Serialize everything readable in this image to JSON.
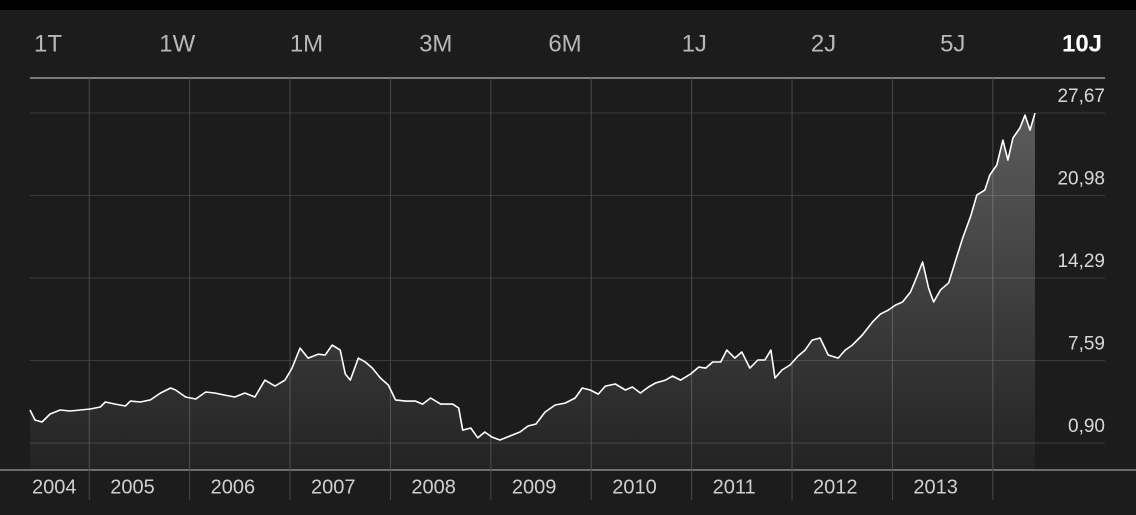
{
  "range_tabs": [
    "1T",
    "1W",
    "1M",
    "3M",
    "6M",
    "1J",
    "2J",
    "5J",
    "10J"
  ],
  "selected_tab": 8,
  "chart_data": {
    "type": "area",
    "x": [
      2004.41,
      2004.46,
      2004.53,
      2004.61,
      2004.71,
      2004.81,
      2004.91,
      2005.01,
      2005.11,
      2005.16,
      2005.26,
      2005.36,
      2005.41,
      2005.51,
      2005.61,
      2005.71,
      2005.81,
      2005.86,
      2005.96,
      2006.06,
      2006.16,
      2006.25,
      2006.35,
      2006.45,
      2006.55,
      2006.65,
      2006.75,
      2006.85,
      2006.95,
      2007.02,
      2007.1,
      2007.18,
      2007.28,
      2007.35,
      2007.42,
      2007.5,
      2007.55,
      2007.6,
      2007.68,
      2007.75,
      2007.82,
      2007.9,
      2007.98,
      2008.05,
      2008.15,
      2008.25,
      2008.32,
      2008.4,
      2008.5,
      2008.62,
      2008.68,
      2008.72,
      2008.8,
      2008.87,
      2008.94,
      2009.01,
      2009.09,
      2009.19,
      2009.29,
      2009.37,
      2009.45,
      2009.54,
      2009.64,
      2009.74,
      2009.84,
      2009.91,
      2009.99,
      2010.07,
      2010.14,
      2010.24,
      2010.34,
      2010.41,
      2010.49,
      2010.57,
      2010.64,
      2010.74,
      2010.81,
      2010.89,
      2010.99,
      2011.07,
      2011.14,
      2011.21,
      2011.29,
      2011.35,
      2011.43,
      2011.5,
      2011.58,
      2011.66,
      2011.73,
      2011.79,
      2011.83,
      2011.9,
      2011.98,
      2012.06,
      2012.13,
      2012.2,
      2012.28,
      2012.36,
      2012.46,
      2012.53,
      2012.6,
      2012.7,
      2012.8,
      2012.88,
      2012.96,
      2013.03,
      2013.1,
      2013.18,
      2013.23,
      2013.3,
      2013.36,
      2013.41,
      2013.48,
      2013.56,
      2013.63,
      2013.7,
      2013.78,
      2013.84,
      2013.92,
      2013.97,
      2014.04,
      2014.1,
      2014.15,
      2014.2,
      2014.27,
      2014.32,
      2014.37,
      2014.42
    ],
    "values": [
      3.58,
      2.77,
      2.6,
      3.25,
      3.58,
      3.5,
      3.58,
      3.66,
      3.82,
      4.23,
      4.06,
      3.9,
      4.3,
      4.23,
      4.4,
      4.96,
      5.36,
      5.2,
      4.63,
      4.47,
      5.04,
      4.96,
      4.79,
      4.63,
      4.96,
      4.63,
      6.0,
      5.52,
      6.0,
      6.98,
      8.6,
      7.79,
      8.1,
      8.04,
      8.84,
      8.44,
      6.5,
      6.0,
      7.79,
      7.47,
      6.98,
      6.17,
      5.6,
      4.4,
      4.3,
      4.3,
      4.06,
      4.55,
      4.06,
      4.06,
      3.74,
      1.95,
      2.12,
      1.31,
      1.79,
      1.39,
      1.14,
      1.47,
      1.79,
      2.28,
      2.44,
      3.41,
      3.98,
      4.14,
      4.55,
      5.36,
      5.2,
      4.87,
      5.52,
      5.69,
      5.2,
      5.44,
      4.96,
      5.44,
      5.77,
      6.0,
      6.33,
      6.0,
      6.5,
      7.06,
      6.98,
      7.47,
      7.47,
      8.44,
      7.79,
      8.28,
      6.98,
      7.63,
      7.63,
      8.44,
      6.17,
      6.82,
      7.23,
      7.96,
      8.44,
      9.25,
      9.42,
      8.04,
      7.79,
      8.44,
      8.84,
      9.66,
      10.71,
      11.36,
      11.69,
      12.09,
      12.34,
      13.15,
      14.12,
      15.58,
      13.47,
      12.34,
      13.33,
      13.9,
      15.74,
      17.53,
      19.31,
      21.01,
      21.42,
      22.64,
      23.45,
      25.47,
      23.85,
      25.64,
      26.45,
      27.5,
      26.28,
      27.66
    ],
    "color": "#ffffff",
    "xlim": [
      2004.41,
      2014.42
    ],
    "xticks": [
      2004,
      2005,
      2006,
      2007,
      2008,
      2009,
      2010,
      2011,
      2012,
      2013,
      {
        "value": 2014,
        "label": null
      }
    ],
    "ylim": [
      -1.29,
      30.51
    ],
    "yticks": [
      {
        "value": 0.9,
        "label": "0,90"
      },
      {
        "value": 7.59,
        "label": "7,59"
      },
      {
        "value": 14.29,
        "label": "14,29"
      },
      {
        "value": 20.98,
        "label": "20,98"
      },
      {
        "value": 27.67,
        "label": "27,67"
      }
    ],
    "grid": true
  }
}
